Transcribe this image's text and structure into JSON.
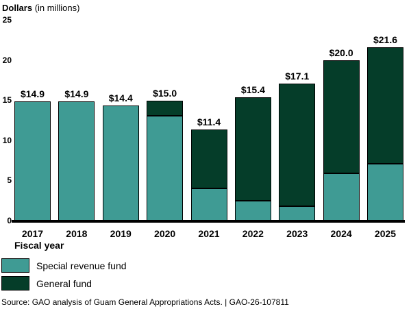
{
  "title": {
    "bold": "Dollars",
    "rest": " (in millions)"
  },
  "chart_data": {
    "type": "bar",
    "stacked": true,
    "title": "Dollars (in millions)",
    "xlabel": "Fiscal year",
    "ylabel": "Dollars in millions",
    "ylim": [
      0,
      25
    ],
    "yticks": [
      0,
      5,
      10,
      15,
      20,
      25
    ],
    "grid": false,
    "legend_position": "bottom-left",
    "categories": [
      "2017",
      "2018",
      "2019",
      "2020",
      "2021",
      "2022",
      "2023",
      "2024",
      "2025"
    ],
    "series": [
      {
        "name": "Special revenue fund",
        "color": "#3f9b94",
        "values": [
          14.9,
          14.9,
          14.4,
          13.1,
          4.0,
          2.5,
          1.8,
          5.9,
          7.1
        ]
      },
      {
        "name": "General fund",
        "color": "#053d29",
        "values": [
          0,
          0,
          0,
          1.9,
          7.4,
          12.9,
          15.3,
          14.1,
          14.5
        ]
      }
    ],
    "totals": [
      14.9,
      14.9,
      14.4,
      15.0,
      11.4,
      15.4,
      17.1,
      20.0,
      21.6
    ],
    "total_labels": [
      "$14.9",
      "$14.9",
      "$14.4",
      "$15.0",
      "$11.4",
      "$15.4",
      "$17.1",
      "$20.0",
      "$21.6"
    ]
  },
  "x_axis_title": "Fiscal year",
  "legend": {
    "items": [
      {
        "label": "Special revenue fund",
        "color": "#3f9b94"
      },
      {
        "label": "General fund",
        "color": "#053d29"
      }
    ]
  },
  "source_text": "Source: GAO analysis of Guam General Appropriations Acts.  |  GAO-26-107811",
  "colors": {
    "special_revenue_fund": "#3f9b94",
    "general_fund": "#053d29",
    "axis_line": "#000000",
    "text": "#000000",
    "background": "#ffffff"
  }
}
